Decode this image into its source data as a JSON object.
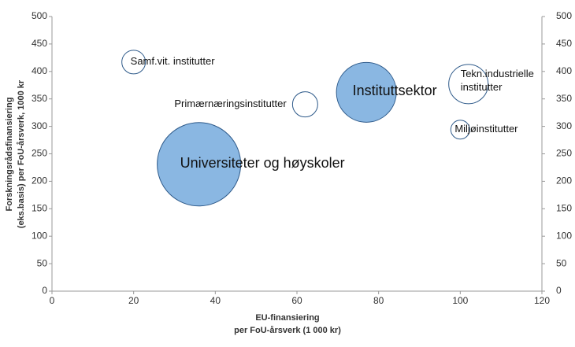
{
  "chart_data": {
    "type": "bubble",
    "x_label": [
      "EU-finansiering",
      "per FoU-årsverk (1 000 kr)"
    ],
    "y_label": [
      "Forskningsrådsfinansiering",
      "(eks.basis) per FoU-årsverk, 1000 kr"
    ],
    "xlim": [
      0,
      120
    ],
    "xticks": [
      0,
      20,
      40,
      60,
      80,
      100,
      120
    ],
    "ylim": [
      0,
      500
    ],
    "yticks": [
      0,
      50,
      100,
      150,
      200,
      250,
      300,
      350,
      400,
      450,
      500
    ],
    "y2lim": [
      0,
      500
    ],
    "y2ticks": [
      0,
      50,
      100,
      150,
      200,
      250,
      300,
      350,
      400,
      450,
      500
    ],
    "series": [
      {
        "name": "Samf.vit. institutter",
        "x": 20,
        "y": 417,
        "size": 225,
        "color": "#ffffff"
      },
      {
        "name": "Primærnæringsinstitutter",
        "x": 62,
        "y": 340,
        "size": 256,
        "color": "#ffffff"
      },
      {
        "name": "Instituttsektor",
        "x": 77,
        "y": 362,
        "size": 1444,
        "color": "#8ab7e2"
      },
      {
        "name": "Universiteter og høyskoler",
        "x": 36,
        "y": 231,
        "size": 2809,
        "color": "#8ab7e2"
      },
      {
        "name": "Tekn.industrielle institutter",
        "x": 102,
        "y": 377,
        "size": 625,
        "color": "#ffffff"
      },
      {
        "name": "Miljøinstitutter",
        "x": 100,
        "y": 294,
        "size": 144,
        "color": "#ffffff"
      }
    ]
  }
}
